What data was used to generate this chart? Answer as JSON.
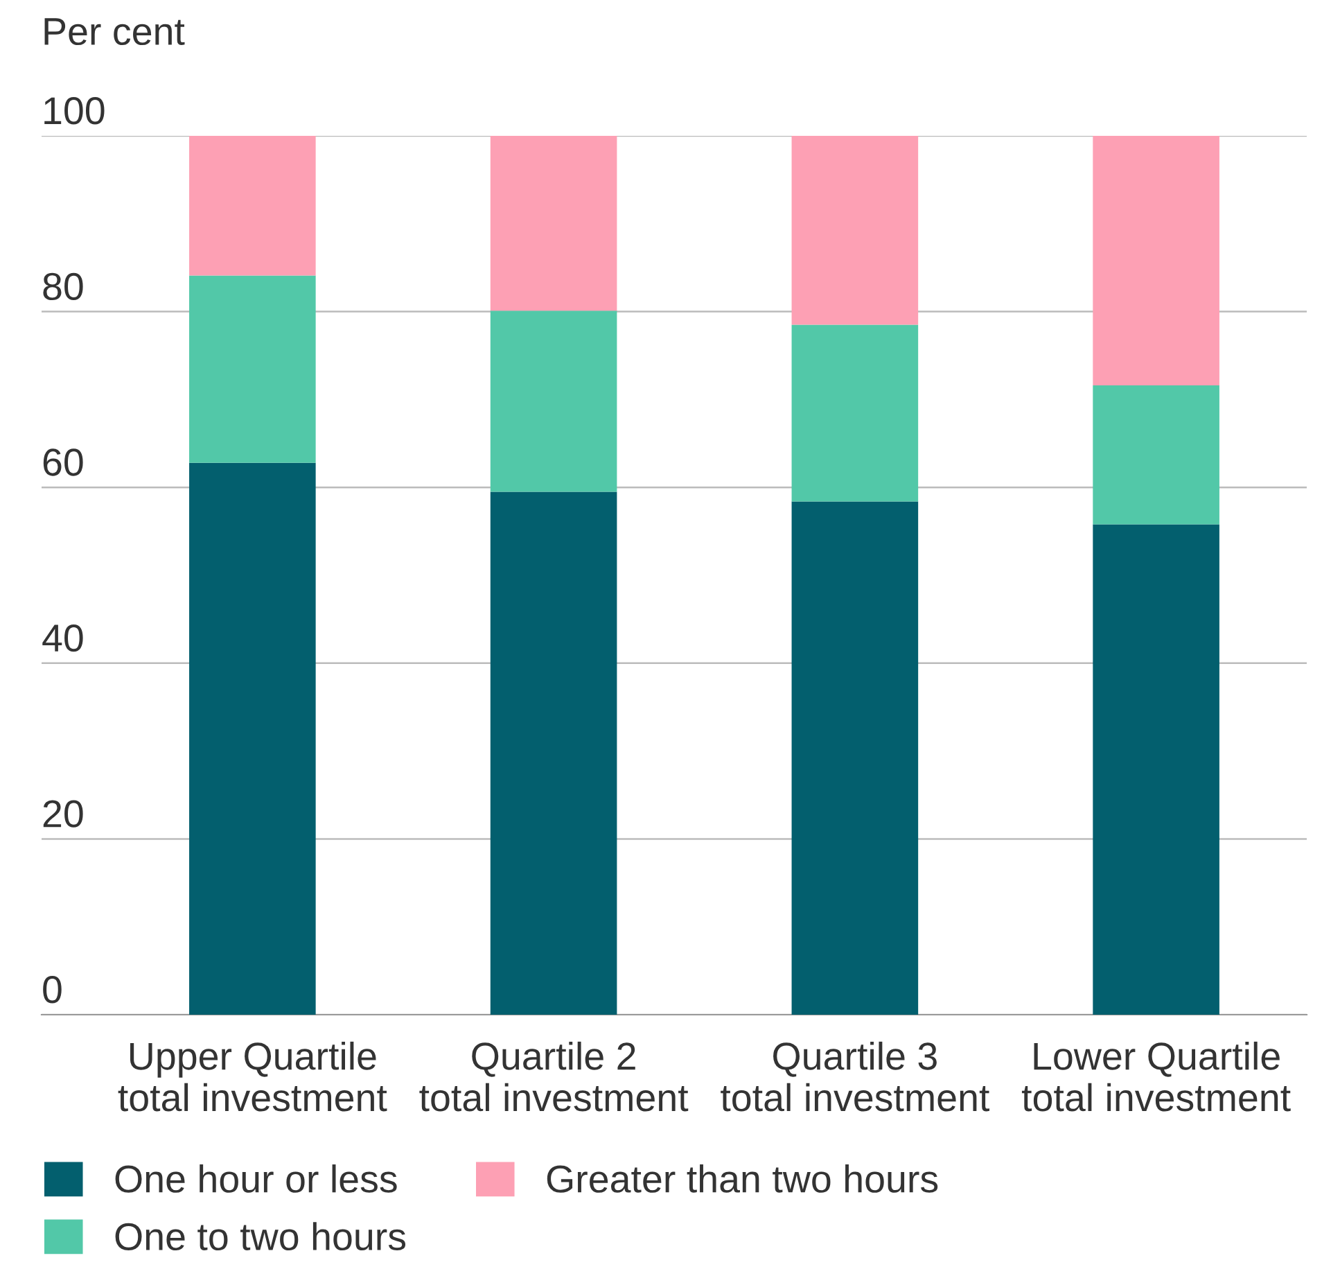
{
  "chart_data": {
    "type": "bar",
    "stacked": true,
    "ylabel": "Per cent",
    "categories": [
      "Upper Quartile\ntotal investment",
      "Quartile 2\ntotal investment",
      "Quartile 3\ntotal investment",
      "Lower Quartile\ntotal investment"
    ],
    "series": [
      {
        "name": "One hour or less",
        "color": "#035f6e",
        "values": [
          62.8,
          59.5,
          58.4,
          55.8
        ]
      },
      {
        "name": "One to two hours",
        "color": "#52c8a8",
        "values": [
          21.3,
          20.6,
          20.1,
          15.8
        ]
      },
      {
        "name": "Greater than two hours",
        "color": "#fda0b4",
        "values": [
          15.9,
          19.9,
          21.5,
          28.4
        ]
      }
    ],
    "ylim": [
      0,
      100
    ],
    "yticks": [
      0,
      20,
      40,
      60,
      80,
      100
    ],
    "grid": "y",
    "legend": "bottom"
  }
}
